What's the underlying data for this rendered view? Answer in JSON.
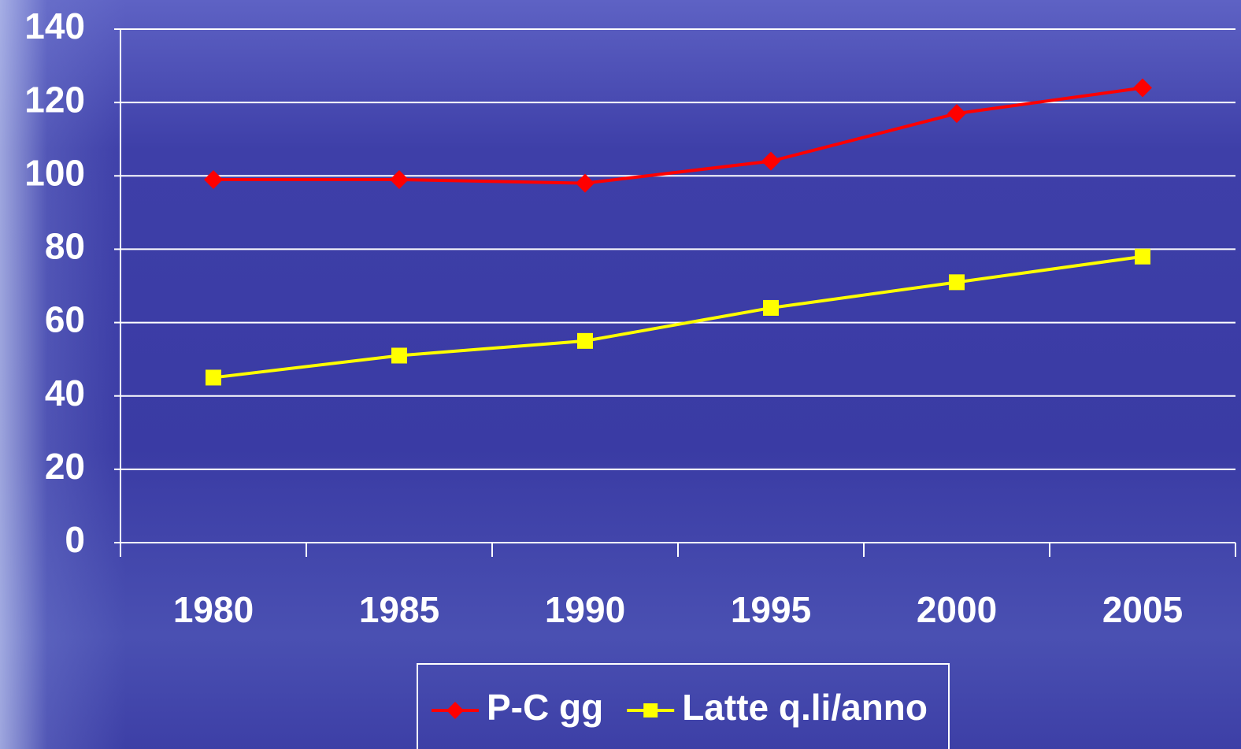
{
  "chart_data": {
    "type": "line",
    "categories": [
      "1980",
      "1985",
      "1990",
      "1995",
      "2000",
      "2005"
    ],
    "series": [
      {
        "name": "P-C gg",
        "color": "#ff0000",
        "marker": "diamond",
        "values": [
          99,
          99,
          98,
          104,
          117,
          124
        ]
      },
      {
        "name": "Latte q.li/anno",
        "color": "#ffff00",
        "marker": "square",
        "values": [
          45,
          51,
          55,
          64,
          71,
          78
        ]
      }
    ],
    "ylim": [
      0,
      140
    ],
    "yticks": [
      0,
      20,
      40,
      60,
      80,
      100,
      120,
      140
    ],
    "grid": true,
    "legend": "bottom"
  }
}
